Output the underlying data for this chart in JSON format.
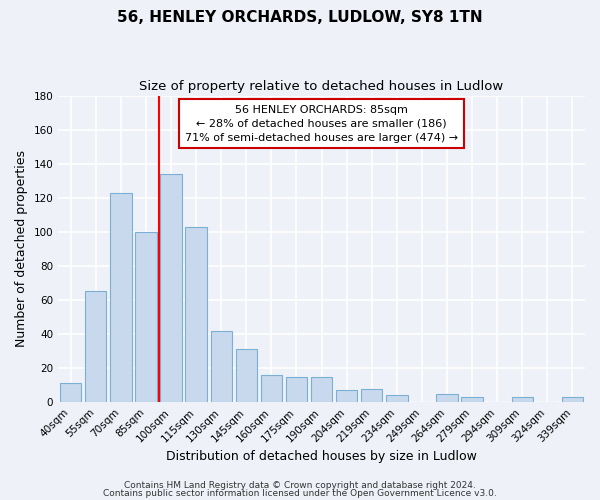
{
  "title": "56, HENLEY ORCHARDS, LUDLOW, SY8 1TN",
  "subtitle": "Size of property relative to detached houses in Ludlow",
  "xlabel": "Distribution of detached houses by size in Ludlow",
  "ylabel": "Number of detached properties",
  "bar_labels": [
    "40sqm",
    "55sqm",
    "70sqm",
    "85sqm",
    "100sqm",
    "115sqm",
    "130sqm",
    "145sqm",
    "160sqm",
    "175sqm",
    "190sqm",
    "204sqm",
    "219sqm",
    "234sqm",
    "249sqm",
    "264sqm",
    "279sqm",
    "294sqm",
    "309sqm",
    "324sqm",
    "339sqm"
  ],
  "bar_heights": [
    11,
    65,
    123,
    100,
    134,
    103,
    42,
    31,
    16,
    15,
    15,
    7,
    8,
    4,
    0,
    5,
    3,
    0,
    3,
    0,
    3
  ],
  "bar_color": "#c8d9ed",
  "bar_edge_color": "#7bafd4",
  "vline_index": 3.5,
  "vline_color": "red",
  "ylim": [
    0,
    180
  ],
  "yticks": [
    0,
    20,
    40,
    60,
    80,
    100,
    120,
    140,
    160,
    180
  ],
  "annotation_title": "56 HENLEY ORCHARDS: 85sqm",
  "annotation_line1": "← 28% of detached houses are smaller (186)",
  "annotation_line2": "71% of semi-detached houses are larger (474) →",
  "annotation_box_color": "#ffffff",
  "annotation_box_edge": "#cc0000",
  "footer_line1": "Contains HM Land Registry data © Crown copyright and database right 2024.",
  "footer_line2": "Contains public sector information licensed under the Open Government Licence v3.0.",
  "background_color": "#eef2f8",
  "grid_color": "#ffffff",
  "title_fontsize": 11,
  "subtitle_fontsize": 9.5,
  "axis_label_fontsize": 9,
  "tick_fontsize": 7.5,
  "footer_fontsize": 6.5
}
